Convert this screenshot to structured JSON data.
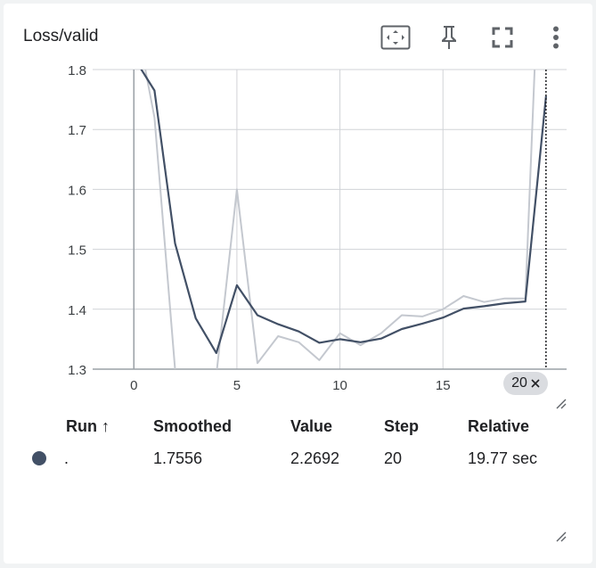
{
  "card": {
    "title": "Loss/valid",
    "toolbar": {
      "fit_icon": "fit-to-domain-icon",
      "pin_icon": "pin-icon",
      "fullscreen_icon": "fullscreen-icon",
      "more_icon": "more-vert-icon"
    }
  },
  "chart_data": {
    "type": "line",
    "xlabel": "",
    "ylabel": "",
    "x_ticks": [
      "0",
      "5",
      "10",
      "15"
    ],
    "y_ticks": [
      "1.3",
      "1.4",
      "1.5",
      "1.6",
      "1.7",
      "1.8"
    ],
    "xlim": [
      -2,
      21
    ],
    "ylim": [
      1.3,
      1.8
    ],
    "grid": true,
    "series": [
      {
        "role": "raw",
        "color": "#c4c8cf",
        "x": [
          0,
          1,
          2,
          3,
          4,
          5,
          6,
          7,
          8,
          9,
          10,
          11,
          12,
          13,
          14,
          15,
          16,
          17,
          18,
          19,
          20
        ],
        "y": [
          1.9,
          1.72,
          1.3,
          1.05,
          1.29,
          1.6,
          1.31,
          1.355,
          1.345,
          1.315,
          1.36,
          1.34,
          1.36,
          1.39,
          1.388,
          1.4,
          1.422,
          1.412,
          1.418,
          1.418,
          2.2692
        ]
      },
      {
        "role": "smoothed",
        "color": "#425066",
        "x": [
          0,
          1,
          2,
          3,
          4,
          5,
          6,
          7,
          8,
          9,
          10,
          11,
          12,
          13,
          14,
          15,
          16,
          17,
          18,
          19,
          20
        ],
        "y": [
          1.82,
          1.765,
          1.51,
          1.385,
          1.327,
          1.44,
          1.39,
          1.375,
          1.363,
          1.344,
          1.35,
          1.345,
          1.351,
          1.367,
          1.376,
          1.386,
          1.401,
          1.405,
          1.41,
          1.413,
          1.7556
        ]
      }
    ],
    "cursor_step": "20"
  },
  "table": {
    "headers": {
      "run": "Run ↑",
      "smoothed": "Smoothed",
      "value": "Value",
      "step": "Step",
      "relative": "Relative"
    },
    "rows": [
      {
        "color": "#425066",
        "run": ".",
        "smoothed": "1.7556",
        "value": "2.2692",
        "step": "20",
        "relative": "19.77 sec"
      }
    ]
  },
  "chip": {
    "close_icon": "close-icon"
  }
}
